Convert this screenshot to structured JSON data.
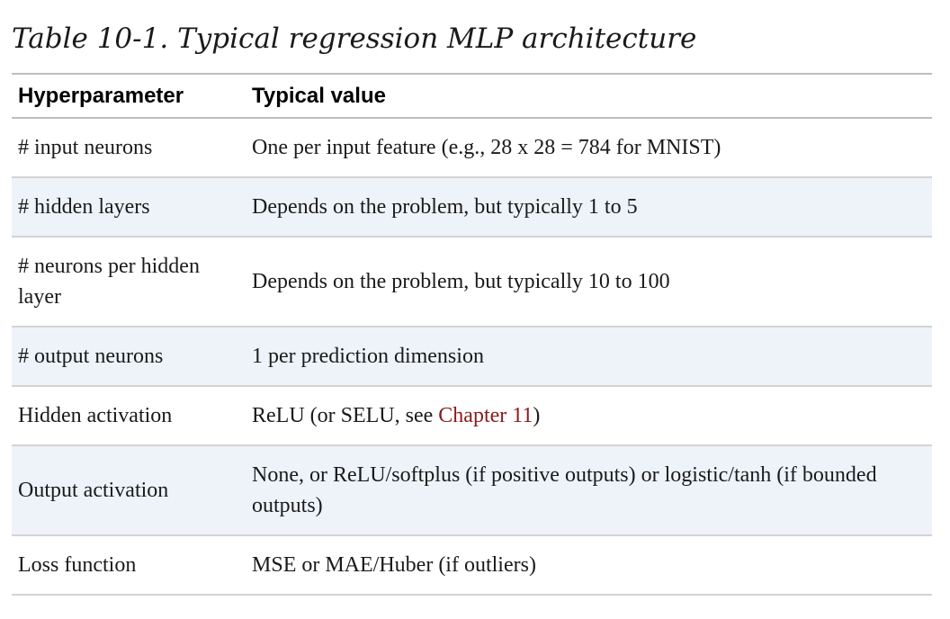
{
  "caption": "Table 10-1. Typical regression MLP architecture",
  "table": {
    "headers": [
      "Hyperparameter",
      "Typical value"
    ],
    "rows": [
      {
        "param": "# input neurons",
        "value": "One per input feature (e.g., 28 x 28 = 784 for MNIST)"
      },
      {
        "param": "# hidden layers",
        "value": "Depends on the problem, but typically 1 to 5"
      },
      {
        "param": "# neurons per hidden layer",
        "value": "Depends on the problem, but typically 10 to 100"
      },
      {
        "param": "# output neurons",
        "value": "1 per prediction dimension"
      },
      {
        "param": "Hidden activation",
        "value_before": "ReLU (or SELU, see ",
        "value_link": "Chapter 11",
        "value_after": ")"
      },
      {
        "param": "Output activation",
        "value": "None, or ReLU/softplus (if positive outputs) or logistic/tanh (if bounded outputs)"
      },
      {
        "param": "Loss function",
        "value": "MSE or MAE/Huber (if outliers)"
      }
    ]
  }
}
